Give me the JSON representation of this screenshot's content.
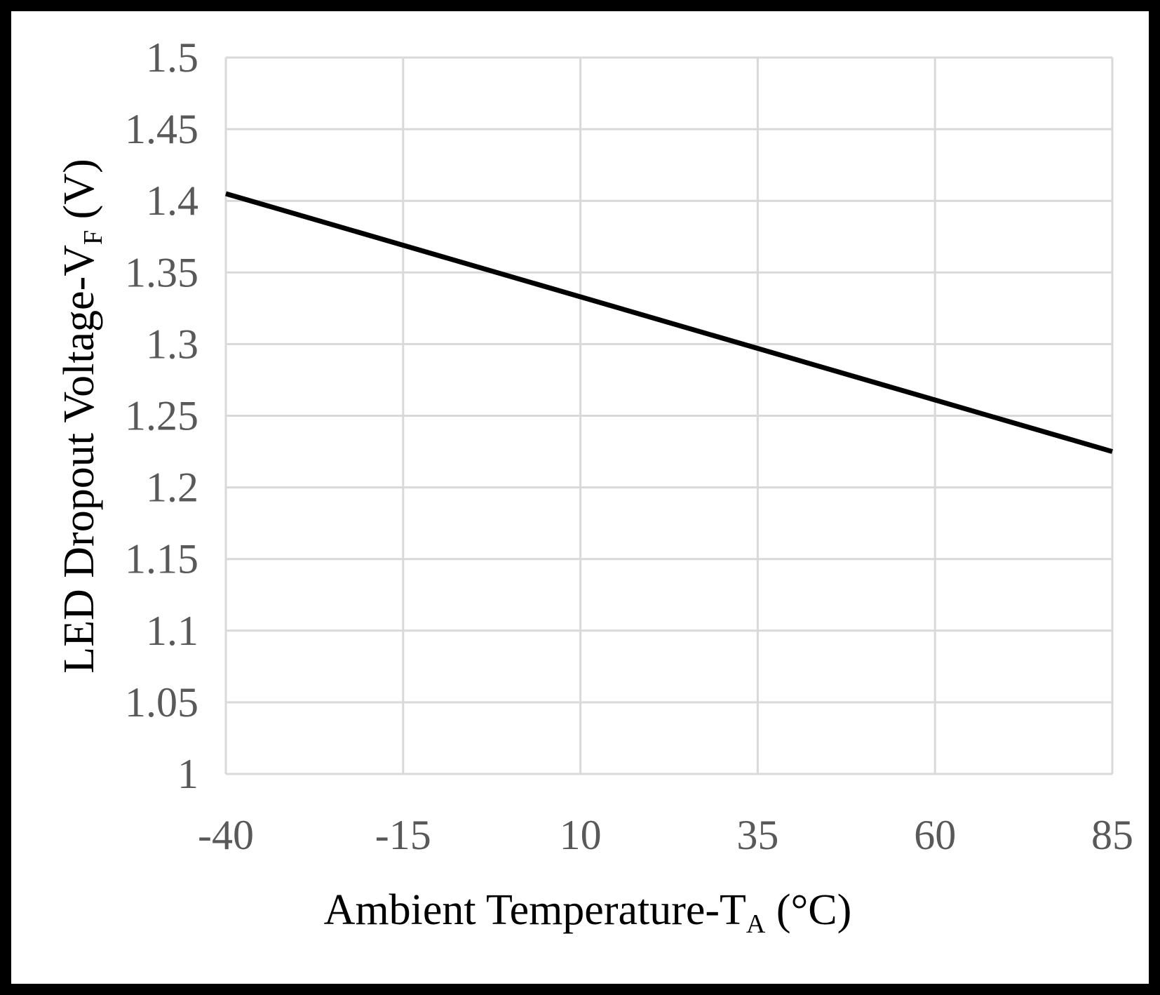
{
  "chart_data": {
    "type": "line",
    "title": "",
    "x": [
      -40,
      -15,
      10,
      35,
      60,
      85
    ],
    "series": [
      {
        "name": "VF",
        "values": [
          1.405,
          1.369,
          1.333,
          1.297,
          1.261,
          1.225
        ],
        "color": "#000000"
      }
    ],
    "x_ticks": [
      -40,
      -15,
      10,
      35,
      60,
      85
    ],
    "x_tick_labels": [
      "-40",
      "-15",
      "10",
      "35",
      "60",
      "85"
    ],
    "y_ticks": [
      1,
      1.05,
      1.1,
      1.15,
      1.2,
      1.25,
      1.3,
      1.35,
      1.4,
      1.45,
      1.5
    ],
    "y_tick_labels": [
      "1",
      "1.05",
      "1.1",
      "1.15",
      "1.2",
      "1.25",
      "1.3",
      "1.35",
      "1.4",
      "1.45",
      "1.5"
    ],
    "xlim": [
      -40,
      85
    ],
    "ylim": [
      1,
      1.5
    ],
    "grid": true,
    "xlabel": {
      "main": "Ambient Temperature-T",
      "sub": "A",
      "suffix": " (°C)"
    },
    "ylabel": {
      "main": "LED Dropout Voltage-V",
      "sub": "F",
      "suffix": " (V)"
    },
    "colors": {
      "grid": "#d9d9d9",
      "line": "#000000",
      "tick_text": "#595959",
      "frame": "#000000"
    }
  }
}
